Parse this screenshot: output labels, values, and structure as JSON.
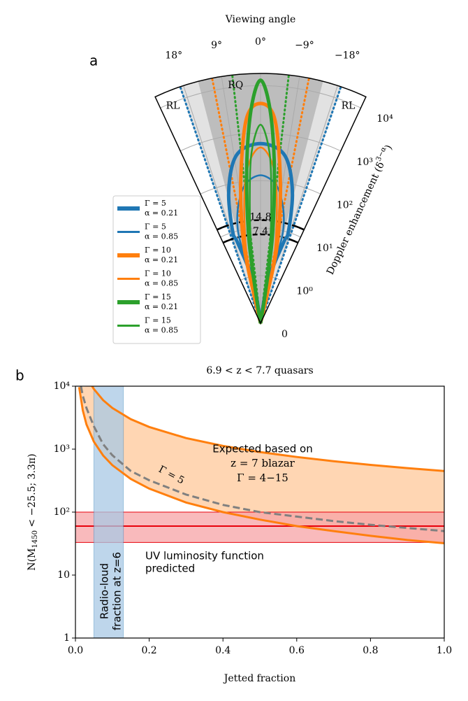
{
  "chart_data": [
    {
      "type": "polar",
      "panel": "a",
      "title": "Viewing angle",
      "raxis_label": [
        "Doppler enhancement (δ",
        "3−α",
        ")"
      ],
      "thetalim": [
        -25,
        25
      ],
      "thetaticks": [
        {
          "value": 18,
          "label": "18°"
        },
        {
          "value": 9,
          "label": "9°"
        },
        {
          "value": 0,
          "label": "0°"
        },
        {
          "value": -9,
          "label": "−9°"
        },
        {
          "value": -18,
          "label": "−18°"
        }
      ],
      "rscale": "symlog",
      "linthresh": 1,
      "rlim": [
        0,
        18000
      ],
      "rticks": [
        0,
        {
          "value": 1,
          "label": "10⁰"
        },
        {
          "value": 10,
          "label": "10¹"
        },
        {
          "value": 100,
          "label": "10²"
        },
        {
          "value": 1000,
          "label": "10³"
        },
        {
          "value": 10000,
          "label": "10⁴"
        }
      ],
      "grid": true,
      "shading": [
        {
          "theta": [
            -19,
            19
          ],
          "color": "#e2e2e2"
        },
        {
          "theta": [
            -14.5,
            14.5
          ],
          "color": "#bdbdbd"
        }
      ],
      "region_labels": [
        "RL",
        "RQ",
        "RL"
      ],
      "cones": [
        {
          "color": "#1f77b4",
          "theta": [
            18.8,
            -18.8
          ]
        },
        {
          "color": "#ff7f0e",
          "theta": [
            11.2,
            -11.2
          ]
        },
        {
          "color": "#2ca02c",
          "theta": [
            6.5,
            -6.5
          ]
        }
      ],
      "arcs": [
        14.8,
        7.4
      ],
      "series": [
        {
          "name": [
            "Γ = 5",
            "α = 0.21"
          ],
          "color": "#1f77b4",
          "width": "thick",
          "theta": [
            0,
            10,
            16,
            17,
            14,
            10,
            6,
            0,
            -6,
            -10,
            -14,
            -17,
            -16,
            -10,
            0
          ],
          "values": [
            0,
            0.9,
            6,
            10,
            60,
            250,
            480,
            600,
            480,
            250,
            60,
            10,
            6,
            0.9,
            0
          ]
        },
        {
          "name": [
            "Γ = 5",
            "α = 0.85"
          ],
          "color": "#1f77b4",
          "width": "thin",
          "theta": [
            0,
            9,
            14,
            13,
            10,
            6,
            0,
            -6,
            -10,
            -13,
            -14,
            -9,
            0
          ],
          "values": [
            0,
            0.9,
            5,
            15,
            40,
            90,
            130,
            90,
            40,
            15,
            5,
            0.9,
            0
          ]
        },
        {
          "name": [
            "Γ = 10",
            "α = 0.21"
          ],
          "color": "#ff7f0e",
          "width": "thick",
          "theta": [
            0,
            13,
            12,
            8,
            4,
            0,
            -4,
            -8,
            -12,
            -13,
            0
          ],
          "values": [
            0,
            0.6,
            5,
            100,
            2000,
            4200,
            2000,
            100,
            5,
            0.6,
            0
          ]
        },
        {
          "name": [
            "Γ = 10",
            "α = 0.85"
          ],
          "color": "#ff7f0e",
          "width": "thin",
          "theta": [
            0,
            12,
            11,
            7,
            4,
            0,
            -4,
            -7,
            -11,
            -12,
            0
          ],
          "values": [
            0,
            0.6,
            4,
            60,
            250,
            500,
            250,
            60,
            4,
            0.6,
            0
          ]
        },
        {
          "name": [
            "Γ = 15",
            "α = 0.21"
          ],
          "color": "#2ca02c",
          "width": "thick",
          "theta": [
            0,
            9,
            8,
            6,
            4,
            2,
            0,
            -2,
            -4,
            -6,
            -8,
            -9,
            0
          ],
          "values": [
            0,
            0.6,
            5,
            60,
            700,
            5000,
            13000,
            5000,
            700,
            60,
            5,
            0.6,
            0
          ]
        },
        {
          "name": [
            "Γ = 15",
            "α = 0.85"
          ],
          "color": "#2ca02c",
          "width": "thin",
          "theta": [
            0,
            8,
            7,
            5,
            3,
            0,
            -3,
            -5,
            -7,
            -8,
            0
          ],
          "values": [
            0,
            0.6,
            4,
            40,
            400,
            1500,
            400,
            40,
            4,
            0.6,
            0
          ]
        }
      ]
    },
    {
      "type": "line",
      "panel": "b",
      "title": "6.9 < z < 7.7 quasars",
      "xlabel": "Jetted fraction",
      "ylabel": [
        "N(M",
        "1450",
        " < −25.5; 3.3π)"
      ],
      "xlim": [
        0,
        1
      ],
      "ylim": [
        1,
        10000
      ],
      "yscale": "log",
      "xticks": [
        {
          "value": 0,
          "label": "0.0"
        },
        0.2,
        0.4,
        0.6,
        0.8,
        {
          "value": 1,
          "label": "1.0"
        }
      ],
      "yticks": [
        1,
        10,
        {
          "value": 100,
          "label": "10²"
        },
        {
          "value": 1000,
          "label": "10³"
        },
        {
          "value": 10000,
          "label": "10⁴"
        }
      ],
      "series": [
        {
          "color": "#ff7f0e",
          "style": "solid",
          "x": [
            0.045,
            0.05,
            0.075,
            0.1,
            0.15,
            0.2,
            0.3,
            0.4,
            0.5,
            0.6,
            0.7,
            0.8,
            0.9,
            1.0
          ],
          "values": [
            10000,
            9000,
            6000,
            4500,
            3000,
            2250,
            1500,
            1125,
            900,
            750,
            643,
            563,
            500,
            450
          ]
        },
        {
          "color": "#ff7f0e",
          "style": "solid",
          "x": [
            0.01,
            0.02,
            0.03,
            0.05,
            0.075,
            0.1,
            0.15,
            0.2,
            0.3,
            0.4,
            0.5,
            0.6,
            0.7,
            0.8,
            0.9,
            1.0
          ],
          "values": [
            9660,
            4100,
            2470,
            1310,
            795,
            556,
            336,
            236,
            142,
            100,
            76,
            60,
            50,
            42,
            36,
            32
          ]
        },
        {
          "color": "#808080",
          "style": "dashed",
          "label": "Γ = 5",
          "x": [
            0.015,
            0.02,
            0.03,
            0.05,
            0.075,
            0.1,
            0.15,
            0.2,
            0.3,
            0.4,
            0.5,
            0.6,
            0.7,
            0.8,
            0.9,
            1.0
          ],
          "values": [
            10000,
            7000,
            4500,
            2300,
            1200,
            800,
            450,
            320,
            190,
            130,
            100,
            85,
            72,
            63,
            56,
            50
          ]
        }
      ],
      "fill_between": [
        0,
        1
      ],
      "fill_color": "#ffd2ab",
      "band_label": [
        "Expected based on",
        "z = 7 blazar",
        "Γ = 4−15"
      ],
      "hband": {
        "values": [
          33,
          100
        ],
        "line": 60,
        "color": "#e8000b",
        "fill": "#f7a3a6",
        "label": [
          "UV luminosity function",
          "predicted"
        ]
      },
      "vband": {
        "x": [
          0.05,
          0.13
        ],
        "color": "#1f77b4",
        "fill": "#a9c9e5",
        "label": [
          "Radio-loud",
          "fraction at z=6"
        ]
      }
    }
  ]
}
